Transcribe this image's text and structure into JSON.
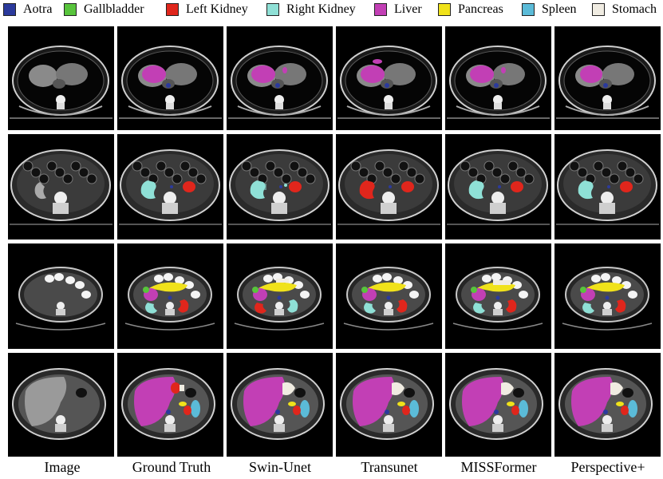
{
  "legend": [
    {
      "label": "Aotra",
      "color": "#2b3a9c"
    },
    {
      "label": "Gallbladder",
      "color": "#58c43c"
    },
    {
      "label": "Left Kidney",
      "color": "#e0261c"
    },
    {
      "label": "Right Kidney",
      "color": "#8fe0d6"
    },
    {
      "label": "Liver",
      "color": "#c23fb5"
    },
    {
      "label": "Pancreas",
      "color": "#f0e21a"
    },
    {
      "label": "Spleen",
      "color": "#5bbbd8"
    },
    {
      "label": "Stomach",
      "color": "#f0ece2"
    }
  ],
  "columns": [
    "Image",
    "Ground Truth",
    "Swin-Unet",
    "Transunet",
    "MISSFormer",
    "Perspective+"
  ]
}
